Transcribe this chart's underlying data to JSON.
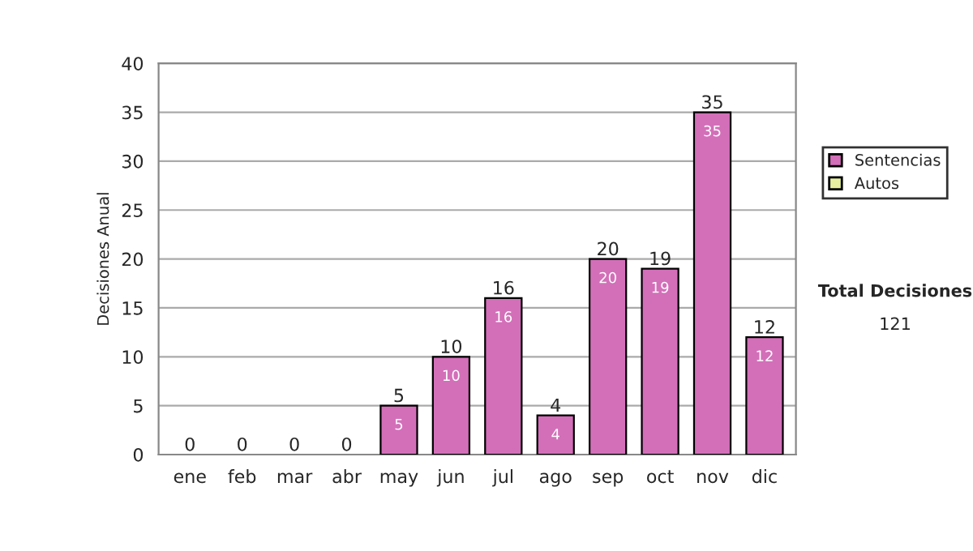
{
  "chart_data": {
    "type": "bar",
    "stacked": true,
    "ylabel": "Decisiones Anual",
    "categories": [
      "ene",
      "feb",
      "mar",
      "abr",
      "may",
      "jun",
      "jul",
      "ago",
      "sep",
      "oct",
      "nov",
      "dic"
    ],
    "series": [
      {
        "name": "Sentencias",
        "color": "#d36fb9",
        "values": [
          0,
          0,
          0,
          0,
          5,
          10,
          16,
          4,
          20,
          19,
          35,
          12
        ],
        "value_labels": [
          null,
          null,
          null,
          null,
          "5",
          "10",
          "16",
          "4",
          "20",
          "19",
          "35",
          "12"
        ]
      },
      {
        "name": "Autos",
        "color": "#e6f0a0",
        "values": [
          0,
          0,
          0,
          0,
          0,
          0,
          0,
          0,
          0,
          0,
          0,
          0
        ]
      }
    ],
    "totals": [
      "0",
      "0",
      "0",
      "0",
      "5",
      "10",
      "16",
      "4",
      "20",
      "19",
      "35",
      "12"
    ],
    "ylim": [
      0,
      40
    ],
    "yticks": [
      0,
      5,
      10,
      15,
      20,
      25,
      30,
      35,
      40
    ],
    "grid": "y",
    "legend": "right",
    "annotations": [
      "Total Decisiones",
      "121"
    ]
  }
}
